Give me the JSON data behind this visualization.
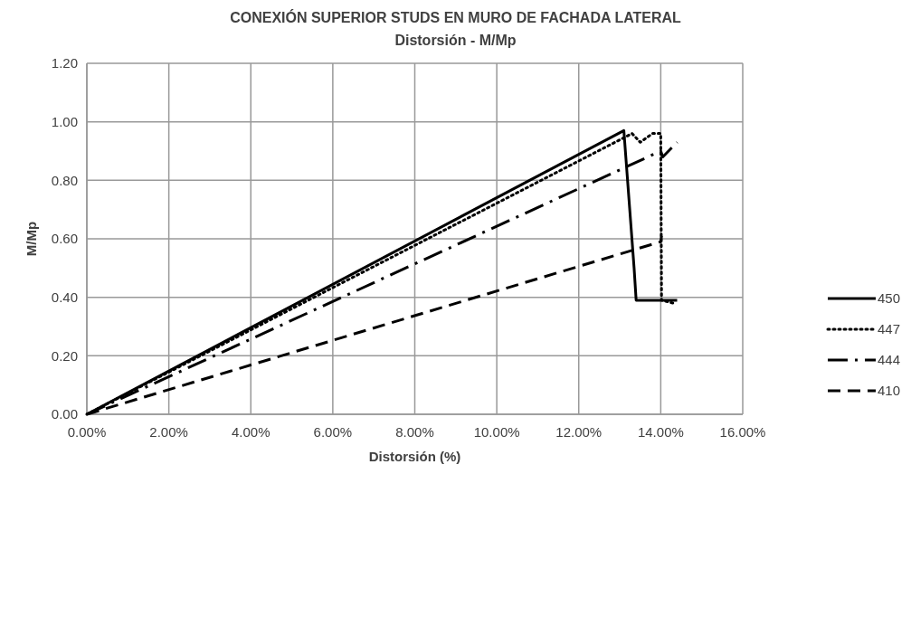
{
  "chart_data": {
    "type": "line",
    "title": "CONEXIÓN SUPERIOR STUDS EN MURO DE FACHADA LATERAL",
    "subtitle": "Distorsión - M/Mp",
    "xlabel": "Distorsión (%)",
    "ylabel": "M/Mp",
    "xlim": [
      0,
      16
    ],
    "ylim": [
      0,
      1.2
    ],
    "xticks": [
      {
        "value": 0,
        "label": "0.00%"
      },
      {
        "value": 2,
        "label": "2.00%"
      },
      {
        "value": 4,
        "label": "4.00%"
      },
      {
        "value": 6,
        "label": "6.00%"
      },
      {
        "value": 8,
        "label": "8.00%"
      },
      {
        "value": 10,
        "label": "10.00%"
      },
      {
        "value": 12,
        "label": "12.00%"
      },
      {
        "value": 14,
        "label": "14.00%"
      },
      {
        "value": 16,
        "label": "16.00%"
      }
    ],
    "yticks": [
      {
        "value": 0,
        "label": "0.00"
      },
      {
        "value": 0.2,
        "label": "0.20"
      },
      {
        "value": 0.4,
        "label": "0.40"
      },
      {
        "value": 0.6,
        "label": "0.60"
      },
      {
        "value": 0.8,
        "label": "0.80"
      },
      {
        "value": 1,
        "label": "1.00"
      },
      {
        "value": 1.2,
        "label": "1.20"
      }
    ],
    "grid": true,
    "legend": "right",
    "series": [
      {
        "name": "450",
        "color": "#000000",
        "line_style": "solid",
        "x": [
          0,
          13.1,
          13.35,
          13.4,
          14.4
        ],
        "values": [
          0,
          0.97,
          0.5,
          0.39,
          0.39
        ]
      },
      {
        "name": "447",
        "color": "#000000",
        "line_style": "dotted",
        "x": [
          0,
          13.3,
          13.5,
          13.8,
          14.0,
          14.02,
          14.3
        ],
        "values": [
          0,
          0.96,
          0.93,
          0.96,
          0.96,
          0.39,
          0.38
        ]
      },
      {
        "name": "444",
        "color": "#000000",
        "line_style": "dashdot",
        "x": [
          0,
          14.0,
          14.05,
          14.4
        ],
        "values": [
          0,
          0.9,
          0.88,
          0.93
        ]
      },
      {
        "name": "410",
        "color": "#000000",
        "line_style": "dashed",
        "x": [
          0,
          14.0,
          14.02
        ],
        "values": [
          0,
          0.59,
          0.61
        ]
      }
    ]
  }
}
